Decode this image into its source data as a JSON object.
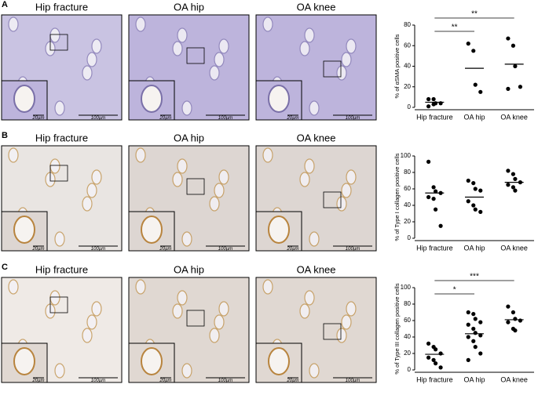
{
  "panels": [
    {
      "label": "A",
      "images": [
        {
          "title": "Hip fracture",
          "scale_small": "20µm",
          "scale_large": "100µm"
        },
        {
          "title": "OA hip",
          "scale_small": "20µm",
          "scale_large": "100µm"
        },
        {
          "title": "OA knee",
          "scale_small": "20µm",
          "scale_large": "100µm"
        }
      ]
    },
    {
      "label": "B",
      "images": [
        {
          "title": "Hip fracture",
          "scale_small": "20µm",
          "scale_large": "100µm"
        },
        {
          "title": "OA hip",
          "scale_small": "20µm",
          "scale_large": "100µm"
        },
        {
          "title": "OA knee",
          "scale_small": "20µm",
          "scale_large": "100µm"
        }
      ]
    },
    {
      "label": "C",
      "images": [
        {
          "title": "Hip fracture",
          "scale_small": "20µm",
          "scale_large": "100µm"
        },
        {
          "title": "OA hip",
          "scale_small": "20µm",
          "scale_large": "100µm"
        },
        {
          "title": "OA knee",
          "scale_small": "20µm",
          "scale_large": "100µm"
        }
      ]
    }
  ],
  "chart_data": [
    {
      "type": "dot",
      "y_label": "% of αSMA positive cells",
      "categories": [
        "Hip fracture",
        "OA hip",
        "OA knee"
      ],
      "points": [
        [
          8,
          8,
          4,
          4,
          1,
          3
        ],
        [
          62,
          55,
          22,
          15
        ],
        [
          67,
          60,
          40,
          20,
          18
        ]
      ],
      "means": [
        5,
        38,
        42
      ],
      "color": "#000000",
      "ylim": [
        0,
        80
      ],
      "yticks": [
        0,
        20,
        40,
        60,
        80
      ],
      "significance": [
        {
          "label": "**",
          "from": 0,
          "to": 1
        },
        {
          "label": "**",
          "from": 0,
          "to": 2
        }
      ]
    },
    {
      "type": "dot",
      "y_label": "% of Type I collagen positive cells",
      "categories": [
        "Hip fracture",
        "OA hip",
        "OA knee"
      ],
      "points": [
        [
          93,
          62,
          57,
          55,
          50,
          48,
          35,
          15
        ],
        [
          70,
          67,
          60,
          58,
          45,
          40,
          35,
          32
        ],
        [
          82,
          78,
          72,
          68,
          65,
          62,
          58
        ]
      ],
      "means": [
        55,
        50,
        68
      ],
      "color": "#000000",
      "ylim": [
        0,
        100
      ],
      "yticks": [
        0,
        20,
        40,
        60,
        80,
        100
      ],
      "significance": []
    },
    {
      "type": "dot",
      "y_label": "% of Type III collagen positive cells",
      "categories": [
        "Hip fracture",
        "OA hip",
        "OA knee"
      ],
      "points": [
        [
          32,
          28,
          25,
          20,
          15,
          12,
          8,
          3
        ],
        [
          70,
          68,
          62,
          58,
          55,
          50,
          45,
          42,
          40,
          35,
          28,
          20,
          12
        ],
        [
          77,
          70,
          62,
          60,
          58,
          50,
          48
        ]
      ],
      "means": [
        19,
        44,
        61
      ],
      "color": "#000000",
      "ylim": [
        0,
        100
      ],
      "yticks": [
        0,
        20,
        40,
        60,
        80,
        100
      ],
      "significance": [
        {
          "label": "*",
          "from": 0,
          "to": 1
        },
        {
          "label": "***",
          "from": 0,
          "to": 2
        }
      ]
    }
  ]
}
